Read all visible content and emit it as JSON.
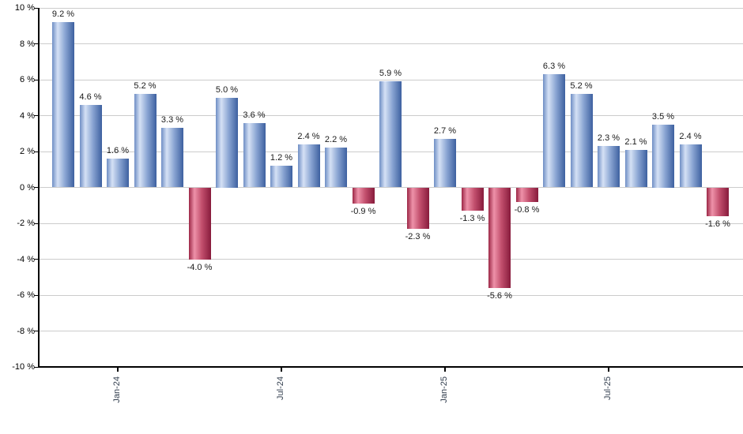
{
  "chart_data": {
    "type": "bar",
    "title": "",
    "xlabel": "",
    "ylabel": "",
    "ylim": [
      -10,
      10
    ],
    "y_grid_step": 2,
    "grid": true,
    "legend": false,
    "y_tick_labels": [
      "10 %",
      "8 %",
      "6 %",
      "4 %",
      "2 %",
      "0 %",
      "-2 %",
      "-4 %",
      "-6 %",
      "-8 %",
      "-10 %"
    ],
    "y_tick_values": [
      10,
      8,
      6,
      4,
      2,
      0,
      -2,
      -4,
      -6,
      -8,
      -10
    ],
    "x_tick_labels": [
      {
        "label": "Jan-24",
        "bar_index": 2
      },
      {
        "label": "Jul-24",
        "bar_index": 8
      },
      {
        "label": "Jan-25",
        "bar_index": 14
      },
      {
        "label": "Jul-25",
        "bar_index": 20
      }
    ],
    "bars": [
      {
        "value": 9.2,
        "label": "9.2 %"
      },
      {
        "value": 4.6,
        "label": "4.6 %"
      },
      {
        "value": 1.6,
        "label": "1.6 %"
      },
      {
        "value": 5.2,
        "label": "5.2 %"
      },
      {
        "value": 3.3,
        "label": "3.3 %"
      },
      {
        "value": -4.0,
        "label": "-4.0 %"
      },
      {
        "value": 5.0,
        "label": "5.0 %"
      },
      {
        "value": 3.6,
        "label": "3.6 %"
      },
      {
        "value": 1.2,
        "label": "1.2 %"
      },
      {
        "value": 2.4,
        "label": "2.4 %"
      },
      {
        "value": 2.2,
        "label": "2.2 %"
      },
      {
        "value": -0.9,
        "label": "-0.9 %"
      },
      {
        "value": 5.9,
        "label": "5.9 %"
      },
      {
        "value": -2.3,
        "label": "-2.3 %"
      },
      {
        "value": 2.7,
        "label": "2.7 %"
      },
      {
        "value": -1.3,
        "label": "-1.3 %"
      },
      {
        "value": -5.6,
        "label": "-5.6 %"
      },
      {
        "value": -0.8,
        "label": "-0.8 %"
      },
      {
        "value": 6.3,
        "label": "6.3 %"
      },
      {
        "value": 5.2,
        "label": "5.2 %"
      },
      {
        "value": 2.3,
        "label": "2.3 %"
      },
      {
        "value": 2.1,
        "label": "2.1 %"
      },
      {
        "value": 3.5,
        "label": "3.5 %"
      },
      {
        "value": 2.4,
        "label": "2.4 %"
      },
      {
        "value": -1.6,
        "label": "-1.6 %"
      }
    ]
  },
  "colors": {
    "positive_bar": {
      "edge_left": "#6f8ec5",
      "highlight": "#d5e1f5",
      "mid": "#8ba6d3",
      "edge_right": "#3d60a0"
    },
    "negative_bar": {
      "edge_left": "#9c2746",
      "highlight": "#ee92a9",
      "mid": "#c24f6d",
      "edge_right": "#871b3c"
    },
    "gridline": "#cccccc",
    "axis": "#000000",
    "value_label": "#1a1a1a",
    "x_tick_label": "#333f4f"
  }
}
